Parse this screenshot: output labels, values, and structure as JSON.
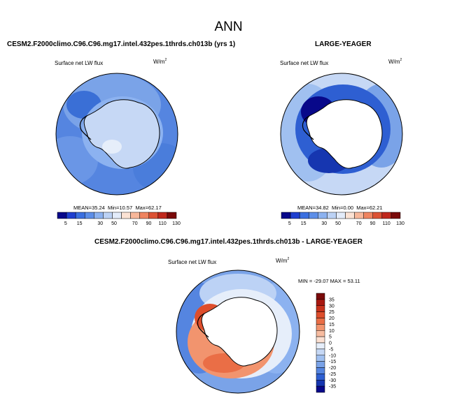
{
  "main_title": "ANN",
  "panels": [
    {
      "title": "CESM2.F2000climo.C96.C96.mg17.intel.432pes.1thrds.ch013b (yrs 1)",
      "variable": "Surface net LW flux",
      "units": "W/m",
      "units_exp": "2",
      "stats": {
        "mean_label": "MEAN=",
        "mean": "35.24",
        "min_label": "Min=",
        "min": "10.57",
        "max_label": "Max=",
        "max": "62.17"
      }
    },
    {
      "title": "LARGE-YEAGER",
      "variable": "Surface net LW flux",
      "units": "W/m",
      "units_exp": "2",
      "stats": {
        "mean_label": "MEAN=",
        "mean": "34.82",
        "min_label": "Min=",
        "min": "0.00",
        "max_label": "Max=",
        "max": "62.21"
      }
    },
    {
      "title": "CESM2.F2000climo.C96.C96.mg17.intel.432pes.1thrds.ch013b - LARGE-YEAGER",
      "variable": "Surface net LW flux",
      "units": "W/m",
      "units_exp": "2",
      "stats_line": "MIN = -29.07  MAX =  53.11"
    }
  ],
  "colorbar_abs": {
    "labels": [
      "5",
      "15",
      "30",
      "50",
      "70",
      "90",
      "110",
      "130"
    ],
    "colors": [
      "#08088a",
      "#1f3fcf",
      "#3a6fe0",
      "#5c8ee8",
      "#8cb2f0",
      "#bcd2f5",
      "#e3ecfa",
      "#fbe2d4",
      "#f7b79a",
      "#ef8460",
      "#dc5234",
      "#c0281c",
      "#7a0a0a"
    ]
  },
  "colorbar_diff": {
    "labels": [
      "35",
      "30",
      "25",
      "20",
      "15",
      "10",
      "5",
      "0",
      "-5",
      "-10",
      "-15",
      "-20",
      "-25",
      "-30",
      "-35"
    ],
    "colors": [
      "#7a0a0a",
      "#a81810",
      "#c8321c",
      "#de4e2c",
      "#ea6e46",
      "#f2946e",
      "#f7bca0",
      "#fbe0d2",
      "#e6eefa",
      "#c6d8f5",
      "#a0c0f0",
      "#7aa3e8",
      "#5585e0",
      "#2e5fd2",
      "#1636b0",
      "#08088a"
    ]
  }
}
